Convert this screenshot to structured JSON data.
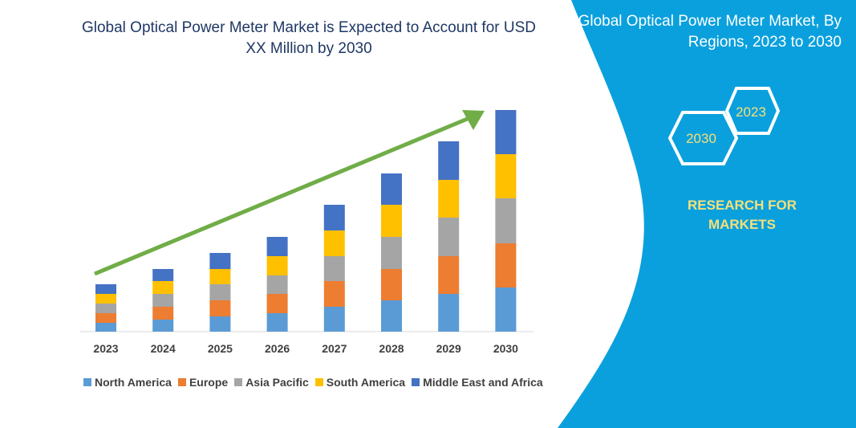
{
  "chart_data": {
    "type": "bar",
    "stacked": true,
    "title": "Global Optical Power Meter Market is Expected to Account for USD XX Million by 2030",
    "categories": [
      "2023",
      "2024",
      "2025",
      "2026",
      "2027",
      "2028",
      "2029",
      "2030"
    ],
    "series": [
      {
        "name": "North America",
        "color": "#5b9bd5",
        "values": [
          11,
          15,
          19,
          23,
          31,
          39,
          47,
          55
        ]
      },
      {
        "name": "Europe",
        "color": "#ed7d31",
        "values": [
          12,
          16,
          20,
          24,
          32,
          39,
          47,
          55
        ]
      },
      {
        "name": "Asia Pacific",
        "color": "#a5a5a5",
        "values": [
          12,
          16,
          20,
          23,
          31,
          40,
          48,
          56
        ]
      },
      {
        "name": "South America",
        "color": "#ffc000",
        "values": [
          12,
          16,
          19,
          24,
          32,
          40,
          47,
          55
        ]
      },
      {
        "name": "Middle East and Africa",
        "color": "#4472c4",
        "values": [
          12,
          15,
          20,
          24,
          32,
          39,
          48,
          55
        ]
      }
    ],
    "xlabel": "",
    "ylabel": "",
    "grid": false,
    "legend_position": "bottom",
    "trend_arrow_color": "#70ad47"
  },
  "panel": {
    "title": "Global Optical Power Meter Market, By Regions, 2023 to 2030",
    "hex_years": [
      "2023",
      "2030"
    ],
    "brand": "RESEARCH FOR MARKETS",
    "color": "#0aa0dd"
  }
}
